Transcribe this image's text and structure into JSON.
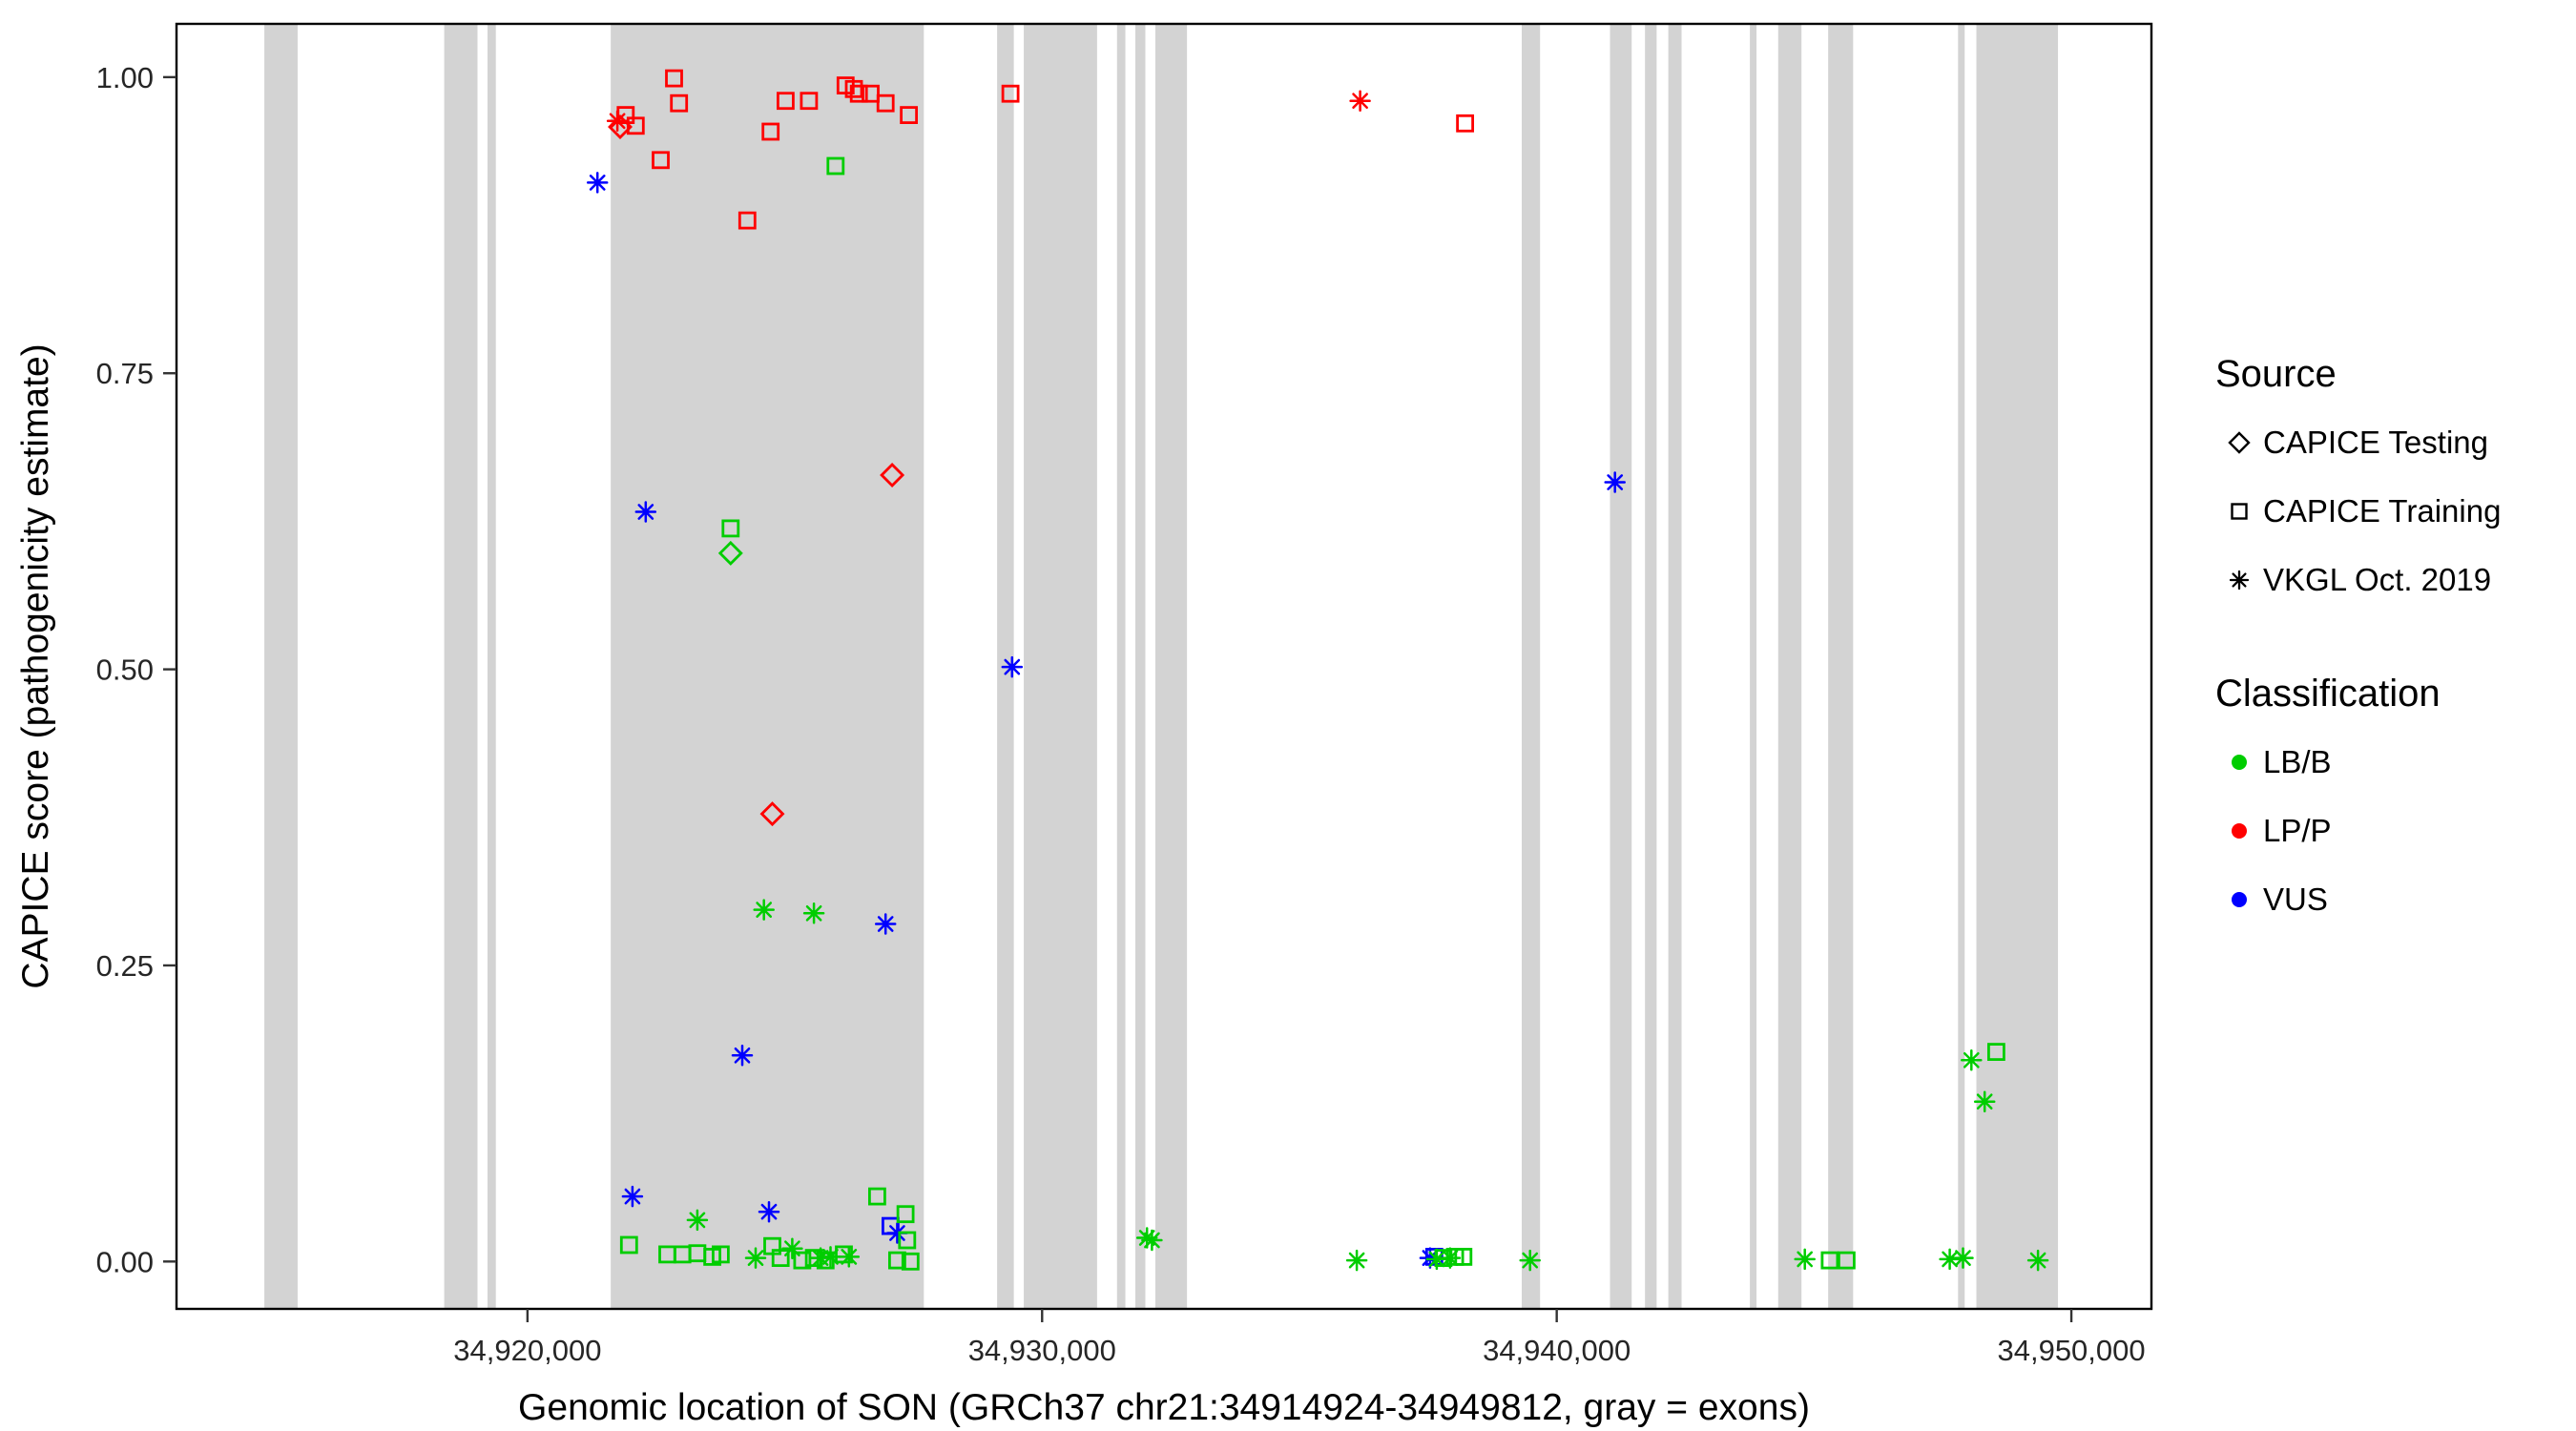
{
  "figure": {
    "xlabel": "Genomic location of SON (GRCh37 chr21:34914924-34949812, gray = exons)",
    "ylabel": "CAPICE score (pathogenicity estimate)"
  },
  "legend": {
    "source": {
      "title": "Source",
      "items": [
        {
          "label": "CAPICE Testing",
          "shape": "diamond"
        },
        {
          "label": "CAPICE Training",
          "shape": "square"
        },
        {
          "label": "VKGL Oct. 2019",
          "shape": "asterisk"
        }
      ]
    },
    "classification": {
      "title": "Classification",
      "items": [
        {
          "label": "LB/B",
          "color": "#00CD00"
        },
        {
          "label": "LP/P",
          "color": "#FF0000"
        },
        {
          "label": "VUS",
          "color": "#0000FF"
        }
      ]
    }
  },
  "chart_data": {
    "type": "scatter",
    "title": "",
    "xlabel": "Genomic location of SON (GRCh37 chr21:34914924-34949812, gray = exons)",
    "ylabel": "CAPICE score (pathogenicity estimate)",
    "xlim": [
      34913180,
      34951556
    ],
    "ylim": [
      -0.04,
      1.045
    ],
    "x_ticks": [
      34920000,
      34930000,
      34940000,
      34950000
    ],
    "x_tick_labels": [
      "34,920,000",
      "34,930,000",
      "34,940,000",
      "34,950,000"
    ],
    "y_ticks": [
      0.0,
      0.25,
      0.5,
      0.75,
      1.0
    ],
    "y_tick_labels": [
      "0.00",
      "0.25",
      "0.50",
      "0.75",
      "1.00"
    ],
    "grid": false,
    "legend_position": "right",
    "exon_color": "#D3D3D3",
    "exons": [
      [
        34914887,
        34915534
      ],
      [
        34918382,
        34919029
      ],
      [
        34919223,
        34919385
      ],
      [
        34921618,
        34927702
      ],
      [
        34929126,
        34929450
      ],
      [
        34929644,
        34931068
      ],
      [
        34931456,
        34931618
      ],
      [
        34931812,
        34932006
      ],
      [
        34932200,
        34932815
      ],
      [
        34939320,
        34939676
      ],
      [
        34941035,
        34941456
      ],
      [
        34941715,
        34941941
      ],
      [
        34942168,
        34942426
      ],
      [
        34943753,
        34943882
      ],
      [
        34944303,
        34944756
      ],
      [
        34945274,
        34945759
      ],
      [
        34947798,
        34947927
      ],
      [
        34948154,
        34949740
      ]
    ],
    "classification_colors": {
      "LB/B": "#00CD00",
      "LP/P": "#FF0000",
      "VUS": "#0000FF"
    },
    "source_shapes": {
      "CAPICE Testing": "diamond",
      "CAPICE Training": "square",
      "VKGL Oct. 2019": "asterisk"
    },
    "points_format": [
      "genomic_position",
      "capice_score",
      "classification",
      "shape"
    ],
    "points": [
      [
        34921747,
        0.963,
        "LP/P",
        "asterisk"
      ],
      [
        34921800,
        0.958,
        "LP/P",
        "diamond"
      ],
      [
        34921909,
        0.968,
        "LP/P",
        "square"
      ],
      [
        34922103,
        0.959,
        "LP/P",
        "square"
      ],
      [
        34922589,
        0.93,
        "LP/P",
        "square"
      ],
      [
        34922848,
        0.999,
        "LP/P",
        "square"
      ],
      [
        34922945,
        0.978,
        "LP/P",
        "square"
      ],
      [
        34924272,
        0.879,
        "LP/P",
        "square"
      ],
      [
        34924725,
        0.954,
        "LP/P",
        "square"
      ],
      [
        34924757,
        0.378,
        "LP/P",
        "diamond"
      ],
      [
        34925016,
        0.98,
        "LP/P",
        "square"
      ],
      [
        34925469,
        0.98,
        "LP/P",
        "square"
      ],
      [
        34926181,
        0.993,
        "LP/P",
        "square"
      ],
      [
        34926343,
        0.99,
        "LP/P",
        "square"
      ],
      [
        34926440,
        0.986,
        "LP/P",
        "square"
      ],
      [
        34926667,
        0.986,
        "LP/P",
        "square"
      ],
      [
        34926958,
        0.978,
        "LP/P",
        "square"
      ],
      [
        34927087,
        0.664,
        "LP/P",
        "diamond"
      ],
      [
        34927411,
        0.968,
        "LP/P",
        "square"
      ],
      [
        34929385,
        0.986,
        "LP/P",
        "square"
      ],
      [
        34936180,
        0.98,
        "LP/P",
        "asterisk"
      ],
      [
        34938219,
        0.961,
        "LP/P",
        "square"
      ],
      [
        34921359,
        0.911,
        "VUS",
        "asterisk"
      ],
      [
        34922039,
        0.055,
        "VUS",
        "asterisk"
      ],
      [
        34922297,
        0.633,
        "VUS",
        "asterisk"
      ],
      [
        34924174,
        0.174,
        "VUS",
        "asterisk"
      ],
      [
        34924692,
        0.042,
        "VUS",
        "asterisk"
      ],
      [
        34926958,
        0.285,
        "VUS",
        "asterisk"
      ],
      [
        34927055,
        0.03,
        "VUS",
        "square"
      ],
      [
        34927184,
        0.024,
        "VUS",
        "asterisk"
      ],
      [
        34929417,
        0.502,
        "VUS",
        "asterisk"
      ],
      [
        34937539,
        0.003,
        "VUS",
        "asterisk"
      ],
      [
        34937620,
        0.004,
        "VUS",
        "square"
      ],
      [
        34941132,
        0.658,
        "VUS",
        "asterisk"
      ],
      [
        34923948,
        0.619,
        "LB/B",
        "square"
      ],
      [
        34923948,
        0.598,
        "LB/B",
        "diamond"
      ],
      [
        34925987,
        0.925,
        "LB/B",
        "square"
      ],
      [
        34924595,
        0.297,
        "LB/B",
        "asterisk"
      ],
      [
        34925566,
        0.294,
        "LB/B",
        "asterisk"
      ],
      [
        34921974,
        0.014,
        "LB/B",
        "square"
      ],
      [
        34922718,
        0.006,
        "LB/B",
        "square"
      ],
      [
        34923010,
        0.006,
        "LB/B",
        "square"
      ],
      [
        34923301,
        0.035,
        "LB/B",
        "asterisk"
      ],
      [
        34923301,
        0.007,
        "LB/B",
        "square"
      ],
      [
        34923592,
        0.004,
        "LB/B",
        "square"
      ],
      [
        34923754,
        0.006,
        "LB/B",
        "square"
      ],
      [
        34924433,
        0.003,
        "LB/B",
        "asterisk"
      ],
      [
        34924757,
        0.013,
        "LB/B",
        "square"
      ],
      [
        34924919,
        0.003,
        "LB/B",
        "square"
      ],
      [
        34925145,
        0.011,
        "LB/B",
        "asterisk"
      ],
      [
        34925340,
        0.001,
        "LB/B",
        "square"
      ],
      [
        34925566,
        0.003,
        "LB/B",
        "square"
      ],
      [
        34925695,
        0.003,
        "LB/B",
        "asterisk"
      ],
      [
        34925792,
        0.001,
        "LB/B",
        "square"
      ],
      [
        34925889,
        0.004,
        "LB/B",
        "asterisk"
      ],
      [
        34926148,
        0.006,
        "LB/B",
        "square"
      ],
      [
        34926246,
        0.004,
        "LB/B",
        "asterisk"
      ],
      [
        34926796,
        0.055,
        "LB/B",
        "square"
      ],
      [
        34927184,
        0.001,
        "LB/B",
        "square"
      ],
      [
        34927346,
        0.04,
        "LB/B",
        "square"
      ],
      [
        34927378,
        0.018,
        "LB/B",
        "square"
      ],
      [
        34927443,
        0.0,
        "LB/B",
        "square"
      ],
      [
        34932038,
        0.02,
        "LB/B",
        "asterisk"
      ],
      [
        34932135,
        0.018,
        "LB/B",
        "asterisk"
      ],
      [
        34936115,
        0.001,
        "LB/B",
        "asterisk"
      ],
      [
        34937668,
        0.002,
        "LB/B",
        "asterisk"
      ],
      [
        34937798,
        0.003,
        "LB/B",
        "square"
      ],
      [
        34937927,
        0.003,
        "LB/B",
        "asterisk"
      ],
      [
        34938024,
        0.004,
        "LB/B",
        "square"
      ],
      [
        34938186,
        0.004,
        "LB/B",
        "square"
      ],
      [
        34939482,
        0.001,
        "LB/B",
        "asterisk"
      ],
      [
        34944821,
        0.002,
        "LB/B",
        "asterisk"
      ],
      [
        34945306,
        0.001,
        "LB/B",
        "square"
      ],
      [
        34945630,
        0.001,
        "LB/B",
        "square"
      ],
      [
        34947637,
        0.002,
        "LB/B",
        "asterisk"
      ],
      [
        34947895,
        0.003,
        "LB/B",
        "asterisk"
      ],
      [
        34948057,
        0.17,
        "LB/B",
        "asterisk"
      ],
      [
        34948316,
        0.135,
        "LB/B",
        "asterisk"
      ],
      [
        34948542,
        0.177,
        "LB/B",
        "square"
      ],
      [
        34949352,
        0.001,
        "LB/B",
        "asterisk"
      ]
    ]
  }
}
